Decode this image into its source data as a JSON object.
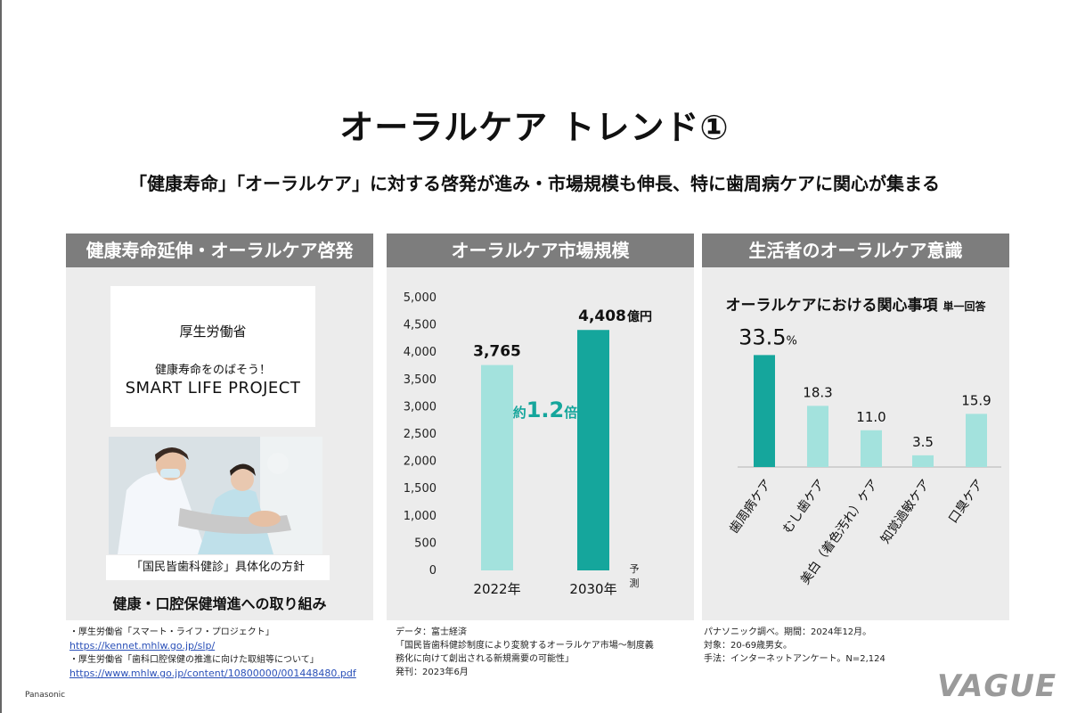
{
  "title": "オーラルケア トレンド①",
  "subtitle": "「健康寿命」「オーラルケア」に対する啓発が進み・市場規模も伸長、特に歯周病ケアに関心が集まる",
  "panel1": {
    "header": "健康寿命延伸・オーラルケア啓発",
    "mhlw_name": "厚生労働省",
    "mhlw_line": "健康寿命をのばそう！",
    "mhlw_project": "SMART LIFE PROJECT",
    "caption": "「国民皆歯科健診」具体化の方針",
    "bottom": "健康・口腔保健増進への取り組み",
    "source": {
      "line1": "・厚生労働省「スマート・ライフ・プロジェクト」",
      "link1": "https://kennet.mhlw.go.jp/slp/",
      "line2": "・厚生労働省「歯科口腔保健の推進に向けた取組等について」",
      "link2": "https://www.mhlw.go.jp/content/10800000/001448480.pdf"
    }
  },
  "panel2": {
    "header": "オーラルケア市場規模",
    "source": {
      "line1": "データ：富士経済",
      "line2": "「国民皆歯科健診制度により変貌するオーラルケア市場～制度義",
      "line3": "務化に向けて創出される新規需要の可能性」",
      "line4": "発刊：2023年6月"
    }
  },
  "panel3": {
    "header": "生活者のオーラルケア意識",
    "chart_title": "オーラルケアにおける関心事項",
    "chart_note": "単一回答",
    "source": {
      "line1": "パナソニック調べ。期間：2024年12月。",
      "line2": "対象：20-69歳男女。",
      "line3": "手法：インターネットアンケート。N=2,124"
    }
  },
  "chart_data": [
    {
      "type": "bar",
      "categories": [
        "2022年",
        "2030年"
      ],
      "values": [
        3765,
        4408
      ],
      "value_labels": [
        "3,765",
        "4,408"
      ],
      "value_unit": "億円",
      "ylim": [
        0,
        5000
      ],
      "yticks": [
        0,
        500,
        1000,
        1500,
        2000,
        2500,
        3000,
        3500,
        4000,
        4500,
        5000
      ],
      "ytick_labels": [
        "0",
        "500",
        "1,000",
        "1,500",
        "2,000",
        "2,500",
        "3,000",
        "3,500",
        "4,000",
        "4,500",
        "5,000"
      ],
      "forecast_label": "予測",
      "annotation": {
        "prefix": "約",
        "value": "1.2",
        "suffix": "倍"
      },
      "colors": [
        "#a3e2dd",
        "#15a69c"
      ],
      "grid": false
    },
    {
      "type": "bar",
      "categories": [
        "歯周病ケア",
        "むし歯ケア",
        "美白（着色汚れ）ケア",
        "知覚過敏ケア",
        "口臭ケア"
      ],
      "values": [
        33.5,
        18.3,
        11.0,
        3.5,
        15.9
      ],
      "value_labels": [
        "33.5",
        "18.3",
        "11.0",
        "3.5",
        "15.9"
      ],
      "value_unit": "%",
      "ylim": [
        0,
        40
      ],
      "colors": [
        "#15a69c",
        "#a3e2dd",
        "#a3e2dd",
        "#a3e2dd",
        "#a3e2dd"
      ],
      "grid": false
    }
  ],
  "footer": {
    "corp": "Panasonic",
    "watermark": "VAGUE"
  }
}
